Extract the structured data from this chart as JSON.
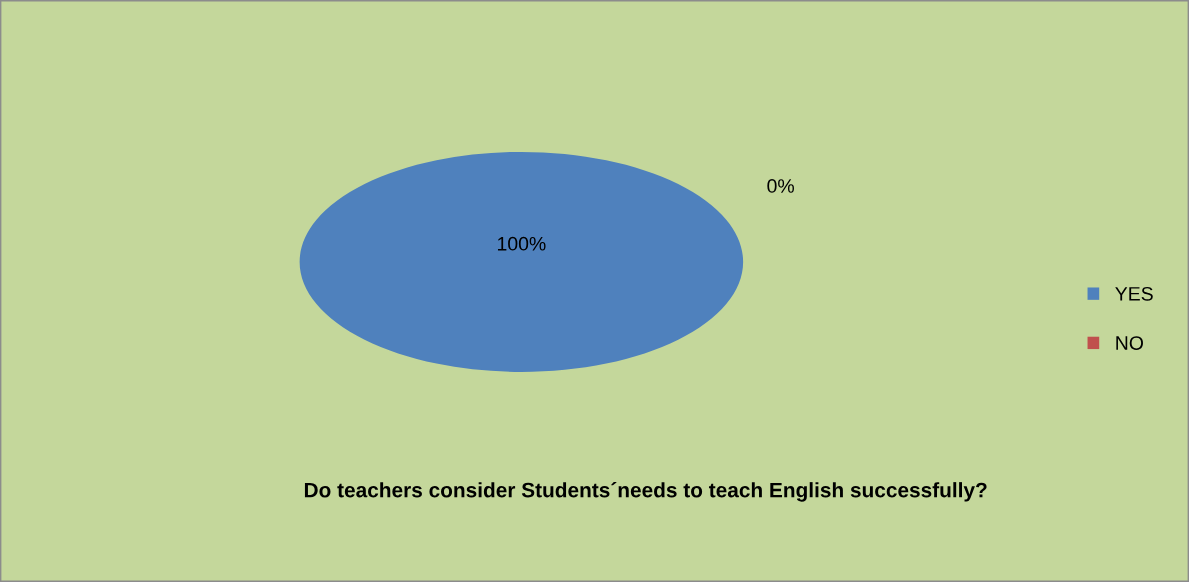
{
  "chart_data": {
    "type": "pie",
    "title": "Do teachers consider Students´needs to teach English successfully?",
    "categories": [
      "YES",
      "NO"
    ],
    "values": [
      100,
      0
    ],
    "colors": [
      "#4f81bd",
      "#c0504d"
    ],
    "value_labels": [
      "100%",
      "0%"
    ],
    "legend": "right"
  }
}
